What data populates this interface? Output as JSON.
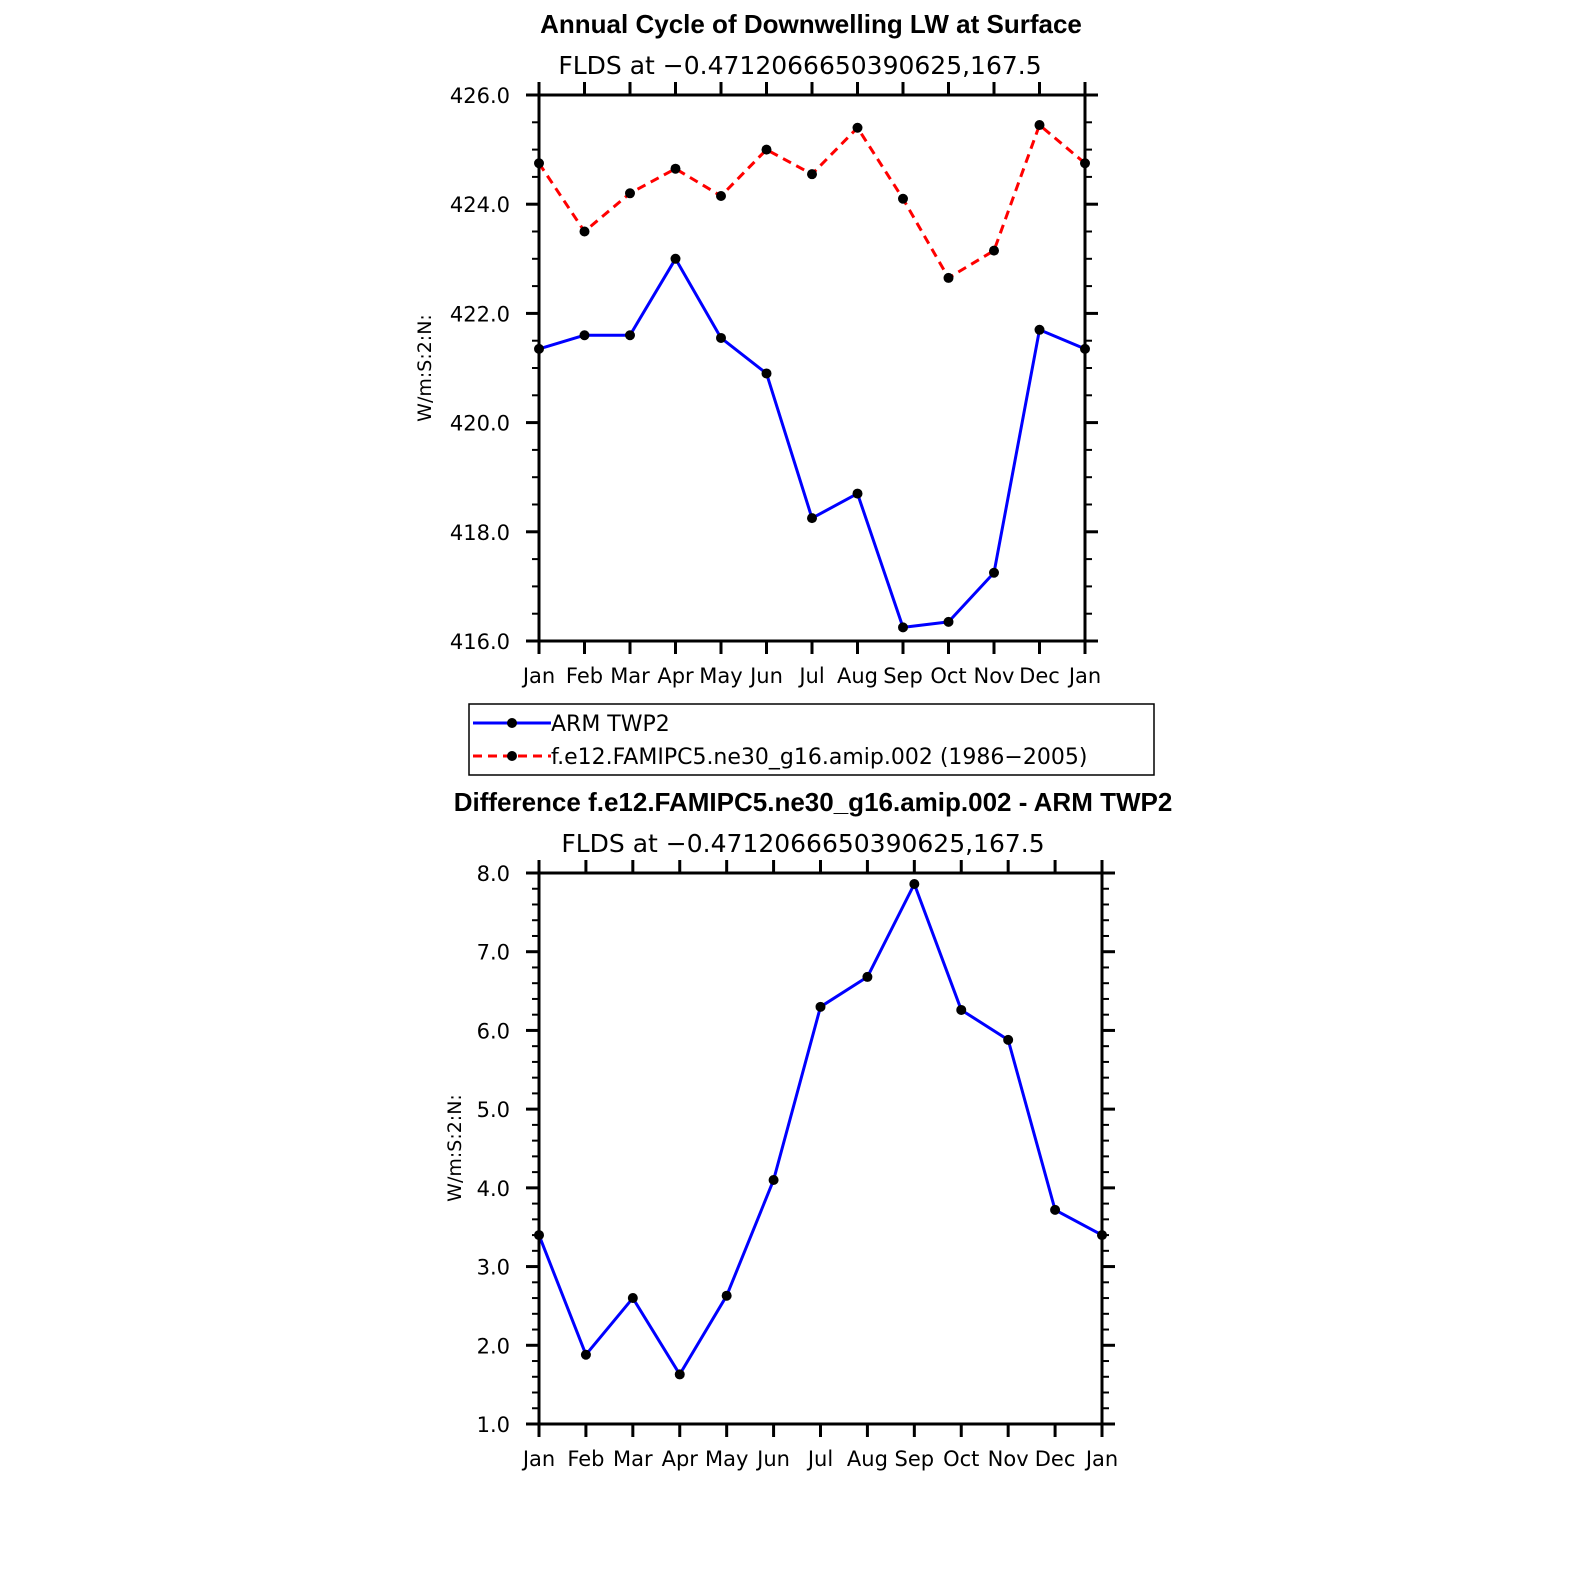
{
  "chart_data": [
    {
      "type": "line",
      "title": "Annual Cycle of Downwelling LW at Surface",
      "subtitle": "FLDS at −0.4712066650390625,167.5",
      "xlabel": "",
      "ylabel": "W/m:S:2:N:",
      "categories": [
        "Jan",
        "Feb",
        "Mar",
        "Apr",
        "May",
        "Jun",
        "Jul",
        "Aug",
        "Sep",
        "Oct",
        "Nov",
        "Dec",
        "Jan"
      ],
      "ylim": [
        416.0,
        426.0
      ],
      "yticks": [
        "416.0",
        "418.0",
        "420.0",
        "422.0",
        "424.0",
        "426.0"
      ],
      "series": [
        {
          "name": "ARM  TWP2",
          "color": "#0000ff",
          "style": "solid",
          "values": [
            421.35,
            421.6,
            421.6,
            423.0,
            421.55,
            420.9,
            418.25,
            418.7,
            416.25,
            416.35,
            417.25,
            421.7,
            421.35
          ]
        },
        {
          "name": "f.e12.FAMIPC5.ne30_g16.amip.002 (1986−2005)",
          "color": "#ff0000",
          "style": "dashed",
          "values": [
            424.75,
            423.5,
            424.2,
            424.65,
            424.15,
            425.0,
            424.55,
            425.4,
            424.1,
            422.65,
            423.15,
            425.45,
            424.75
          ]
        }
      ],
      "legend": "below"
    },
    {
      "type": "line",
      "title": "Difference f.e12.FAMIPC5.ne30_g16.amip.002 - ARM TWP2",
      "subtitle": "FLDS at −0.4712066650390625,167.5",
      "xlabel": "",
      "ylabel": "W/m:S:2:N:",
      "categories": [
        "Jan",
        "Feb",
        "Mar",
        "Apr",
        "May",
        "Jun",
        "Jul",
        "Aug",
        "Sep",
        "Oct",
        "Nov",
        "Dec",
        "Jan"
      ],
      "ylim": [
        1.0,
        8.0
      ],
      "yticks": [
        "1.0",
        "2.0",
        "3.0",
        "4.0",
        "5.0",
        "6.0",
        "7.0",
        "8.0"
      ],
      "series": [
        {
          "name": "Difference",
          "color": "#0000ff",
          "style": "solid",
          "values": [
            3.4,
            1.88,
            2.6,
            1.63,
            2.63,
            4.1,
            6.3,
            6.68,
            7.86,
            6.26,
            5.88,
            3.72,
            3.4
          ]
        }
      ]
    }
  ]
}
